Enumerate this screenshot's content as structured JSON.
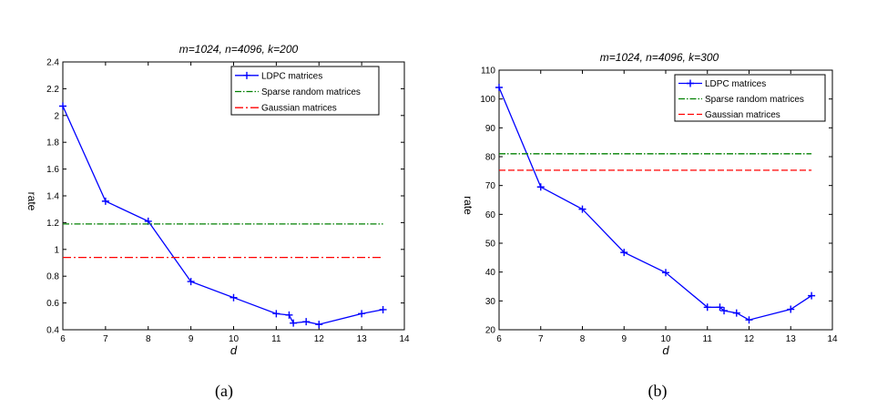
{
  "chart_data": [
    {
      "type": "line",
      "title": "m=1024, n=4096, k=200",
      "xlabel": "d",
      "ylabel": "rate",
      "caption": "(a)",
      "xlim": [
        6,
        14
      ],
      "ylim": [
        0.4,
        2.4
      ],
      "xticks": [
        6,
        7,
        8,
        9,
        10,
        11,
        12,
        13,
        14
      ],
      "yticks": [
        0.4,
        0.6,
        0.8,
        1,
        1.2,
        1.4,
        1.6,
        1.8,
        2,
        2.2,
        2.4
      ],
      "ytick_labels": [
        "0.4",
        "0.6",
        "0.8",
        "1",
        "1.2",
        "1.4",
        "1.6",
        "1.8",
        "2",
        "2.2",
        "2.4"
      ],
      "xtick_labels": [
        "6",
        "7",
        "8",
        "9",
        "10",
        "11",
        "12",
        "13",
        "14"
      ],
      "legend_position": "top-right",
      "series": [
        {
          "name": "LDPC matrices",
          "color": "#0000ff",
          "style": "solid",
          "marker": "plus",
          "x": [
            6,
            7,
            8,
            9,
            10,
            11,
            11.3,
            11.4,
            11.7,
            12,
            13,
            13.5
          ],
          "y": [
            2.07,
            1.36,
            1.21,
            0.76,
            0.64,
            0.52,
            0.51,
            0.45,
            0.46,
            0.44,
            0.52,
            0.55
          ]
        },
        {
          "name": "Sparse random matrices",
          "color": "#008000",
          "style": "dashdot",
          "x": [
            6,
            13.5
          ],
          "y": [
            1.19,
            1.19
          ]
        },
        {
          "name": "Gaussian matrices",
          "color": "#ff0000",
          "style": "dashdot-heavy",
          "x": [
            6,
            13.5
          ],
          "y": [
            0.94,
            0.94
          ]
        }
      ]
    },
    {
      "type": "line",
      "title": "m=1024, n=4096, k=300",
      "xlabel": "d",
      "ylabel": "rate",
      "caption": "(b)",
      "xlim": [
        6,
        14
      ],
      "ylim": [
        20,
        110
      ],
      "xticks": [
        6,
        7,
        8,
        9,
        10,
        11,
        12,
        13,
        14
      ],
      "yticks": [
        20,
        30,
        40,
        50,
        60,
        70,
        80,
        90,
        100,
        110
      ],
      "ytick_labels": [
        "20",
        "30",
        "40",
        "50",
        "60",
        "70",
        "80",
        "90",
        "100",
        "110"
      ],
      "xtick_labels": [
        "6",
        "7",
        "8",
        "9",
        "10",
        "11",
        "12",
        "13",
        "14"
      ],
      "legend_position": "top-right",
      "series": [
        {
          "name": "LDPC matrices",
          "color": "#0000ff",
          "style": "solid",
          "marker": "plus",
          "x": [
            6,
            7,
            8,
            9,
            10,
            11,
            11.3,
            11.4,
            11.7,
            12,
            13,
            13.5
          ],
          "y": [
            104,
            69.5,
            61.8,
            46.8,
            39.8,
            27.8,
            27.8,
            26.6,
            25.8,
            23.4,
            27.1,
            31.8
          ]
        },
        {
          "name": "Sparse random matrices",
          "color": "#008000",
          "style": "dashdot",
          "x": [
            6,
            13.5
          ],
          "y": [
            81,
            81
          ]
        },
        {
          "name": "Gaussian matrices",
          "color": "#ff0000",
          "style": "dashed",
          "x": [
            6,
            13.5
          ],
          "y": [
            75.3,
            75.3
          ]
        }
      ]
    }
  ]
}
